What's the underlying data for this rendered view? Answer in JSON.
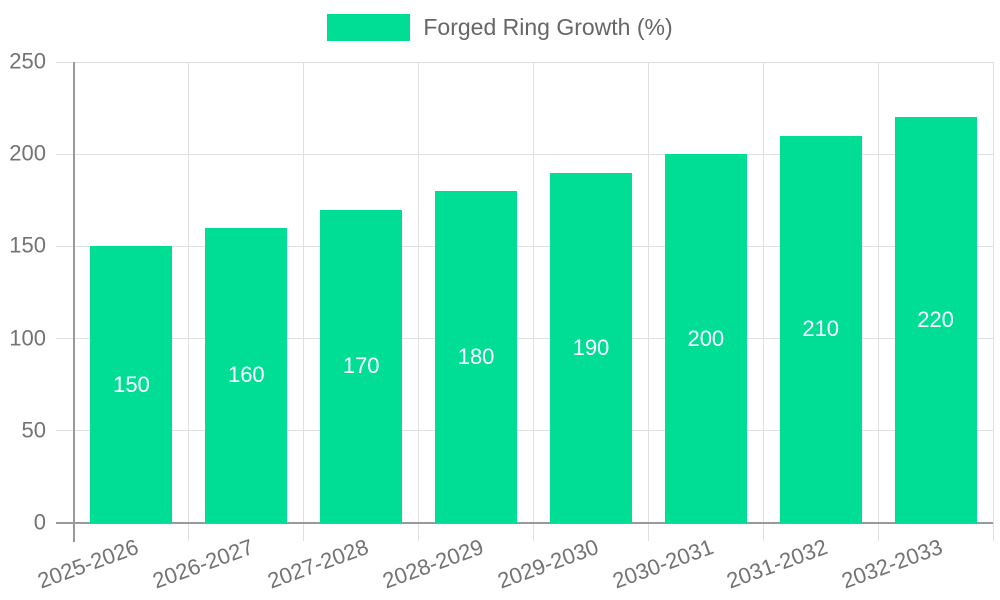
{
  "chart_data": {
    "type": "bar",
    "categories": [
      "2025-2026",
      "2026-2027",
      "2027-2028",
      "2028-2029",
      "2029-2030",
      "2030-2031",
      "2031-2032",
      "2032-2033"
    ],
    "series": [
      {
        "name": "Forged Ring Growth (%)",
        "values": [
          150,
          160,
          170,
          180,
          190,
          200,
          210,
          220
        ]
      }
    ],
    "xlabel": "",
    "ylabel": "",
    "ylim": [
      0,
      250
    ],
    "yticks": [
      0,
      50,
      100,
      150,
      200,
      250
    ],
    "grid": true,
    "legend_position": "top-center",
    "x_label_rotation_deg": -20,
    "colors": {
      "bar": "#00DE96",
      "data_label": "#ffffff",
      "grid": "#e0e0e0",
      "axis": "#9a9a9a",
      "tick_label": "#737373",
      "legend_text": "#666666",
      "background": "#ffffff"
    }
  }
}
